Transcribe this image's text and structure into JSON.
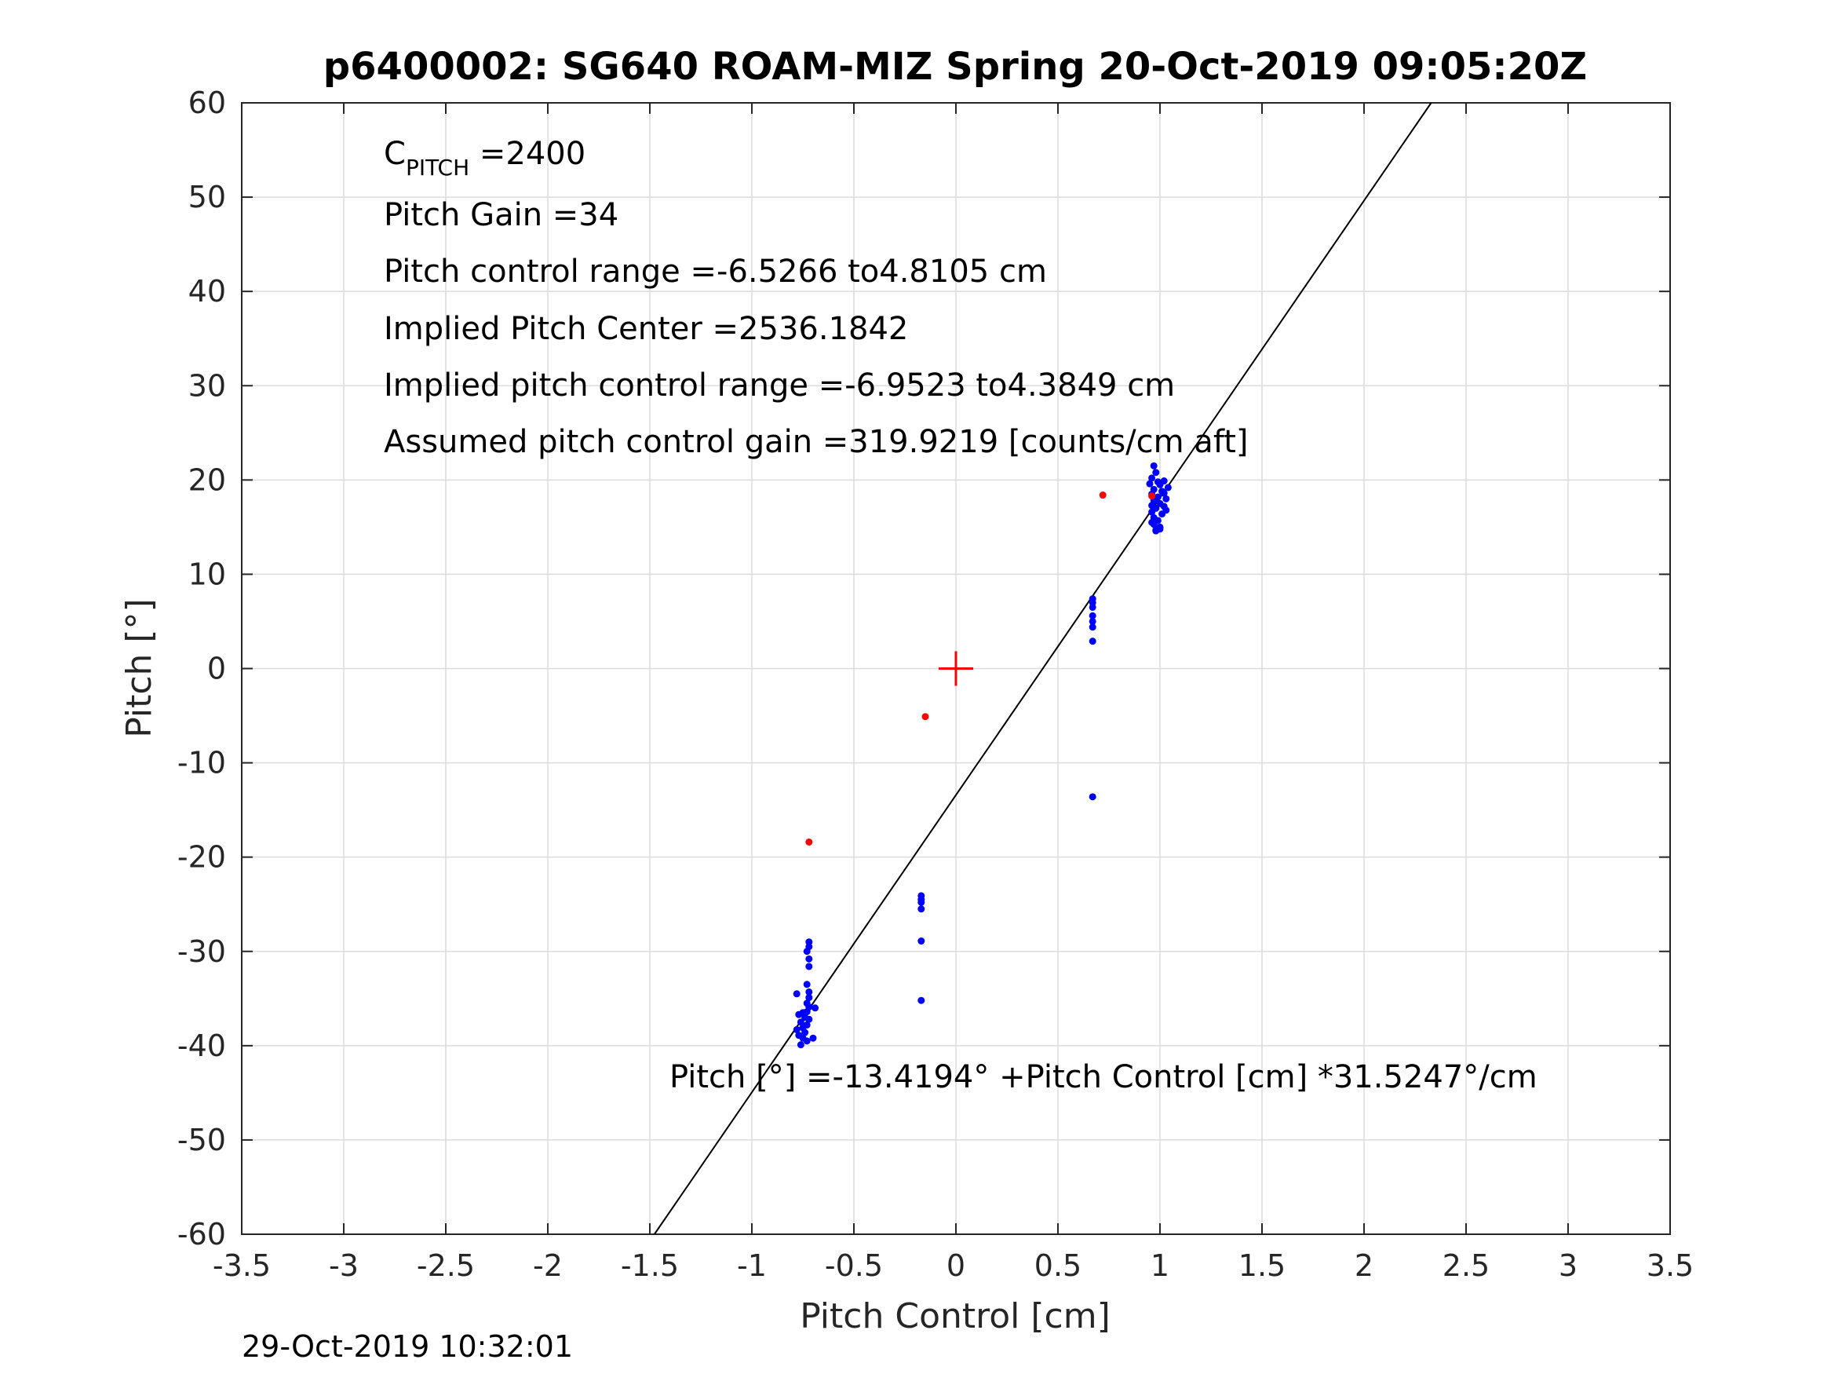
{
  "chart_data": {
    "type": "scatter",
    "title": "p6400002: SG640 ROAM-MIZ Spring 20-Oct-2019 09:05:20Z",
    "xlabel": "Pitch Control [cm]",
    "ylabel": "Pitch [°]",
    "xlim": [
      -3.5,
      3.5
    ],
    "ylim": [
      -60,
      60
    ],
    "xticks": [
      -3.5,
      -3,
      -2.5,
      -2,
      -1.5,
      -1,
      -0.5,
      0,
      0.5,
      1,
      1.5,
      2,
      2.5,
      3,
      3.5
    ],
    "yticks": [
      60,
      50,
      40,
      30,
      20,
      10,
      0,
      -10,
      -20,
      -30,
      -40,
      -50,
      -60
    ],
    "grid": true,
    "annotations": {
      "c_pitch_main": "C",
      "c_pitch_sub": "PITCH",
      "c_pitch_value": " =2400",
      "pitch_gain": "Pitch Gain =34",
      "control_range": "Pitch control range =-6.5266 to4.8105 cm",
      "implied_center": "Implied Pitch Center =2536.1842",
      "implied_range": "Implied pitch control range =-6.9523 to4.3849 cm",
      "assumed_gain": "Assumed pitch control gain =319.9219 [counts/cm aft]",
      "fit_equation": "Pitch [°] =-13.4194° +Pitch Control [cm] *31.5247°/cm"
    },
    "fit_line": {
      "intercept": -13.4194,
      "slope": 31.5247
    },
    "center_marker": {
      "x": 0,
      "y": 0,
      "color": "#ff0000"
    },
    "series": [
      {
        "color": "#0000ff",
        "points": [
          [
            -0.72,
            -29.0
          ],
          [
            -0.72,
            -29.5
          ],
          [
            -0.73,
            -30.0
          ],
          [
            -0.72,
            -30.8
          ],
          [
            -0.72,
            -31.6
          ],
          [
            -0.73,
            -33.5
          ],
          [
            -0.72,
            -34.3
          ],
          [
            -0.72,
            -34.9
          ],
          [
            -0.73,
            -35.5
          ],
          [
            -0.72,
            -35.9
          ],
          [
            -0.73,
            -36.4
          ],
          [
            -0.75,
            -36.5
          ],
          [
            -0.77,
            -36.7
          ],
          [
            -0.74,
            -37.0
          ],
          [
            -0.72,
            -37.2
          ],
          [
            -0.76,
            -37.5
          ],
          [
            -0.73,
            -37.8
          ],
          [
            -0.75,
            -38.1
          ],
          [
            -0.78,
            -38.3
          ],
          [
            -0.74,
            -38.6
          ],
          [
            -0.77,
            -38.9
          ],
          [
            -0.75,
            -39.2
          ],
          [
            -0.73,
            -39.5
          ],
          [
            -0.76,
            -39.9
          ],
          [
            -0.78,
            -34.5
          ],
          [
            -0.69,
            -36.0
          ],
          [
            -0.7,
            -39.2
          ],
          [
            -0.17,
            -24.1
          ],
          [
            -0.17,
            -24.5
          ],
          [
            -0.17,
            -24.8
          ],
          [
            -0.17,
            -25.5
          ],
          [
            -0.17,
            -28.9
          ],
          [
            -0.17,
            -35.2
          ],
          [
            0.67,
            7.4
          ],
          [
            0.67,
            7.0
          ],
          [
            0.67,
            6.5
          ],
          [
            0.67,
            5.6
          ],
          [
            0.67,
            5.0
          ],
          [
            0.67,
            4.4
          ],
          [
            0.67,
            2.9
          ],
          [
            0.67,
            -13.6
          ],
          [
            0.97,
            21.5
          ],
          [
            0.98,
            20.8
          ],
          [
            0.96,
            20.2
          ],
          [
            0.99,
            19.8
          ],
          [
            1.0,
            19.5
          ],
          [
            1.02,
            19.9
          ],
          [
            0.97,
            19.0
          ],
          [
            1.01,
            18.8
          ],
          [
            0.96,
            18.5
          ],
          [
            0.99,
            18.2
          ],
          [
            1.03,
            18.0
          ],
          [
            0.97,
            17.8
          ],
          [
            1.0,
            17.5
          ],
          [
            1.02,
            17.2
          ],
          [
            0.98,
            17.0
          ],
          [
            0.96,
            16.6
          ],
          [
            1.01,
            16.4
          ],
          [
            0.97,
            16.0
          ],
          [
            0.99,
            15.7
          ],
          [
            0.97,
            15.3
          ],
          [
            1.0,
            15.0
          ],
          [
            0.98,
            14.7
          ],
          [
            0.96,
            15.5
          ],
          [
            1.03,
            16.8
          ],
          [
            1.02,
            18.6
          ],
          [
            0.95,
            19.6
          ],
          [
            1.04,
            19.2
          ],
          [
            0.96,
            17.3
          ],
          [
            0.98,
            14.6
          ],
          [
            1.0,
            14.8
          ]
        ]
      },
      {
        "color": "#ff0000",
        "points": [
          [
            -0.72,
            -18.4
          ],
          [
            -0.15,
            -5.1
          ],
          [
            0.72,
            18.4
          ],
          [
            0.96,
            18.3
          ]
        ]
      }
    ]
  },
  "footer": {
    "timestamp": "29-Oct-2019 10:32:01"
  }
}
